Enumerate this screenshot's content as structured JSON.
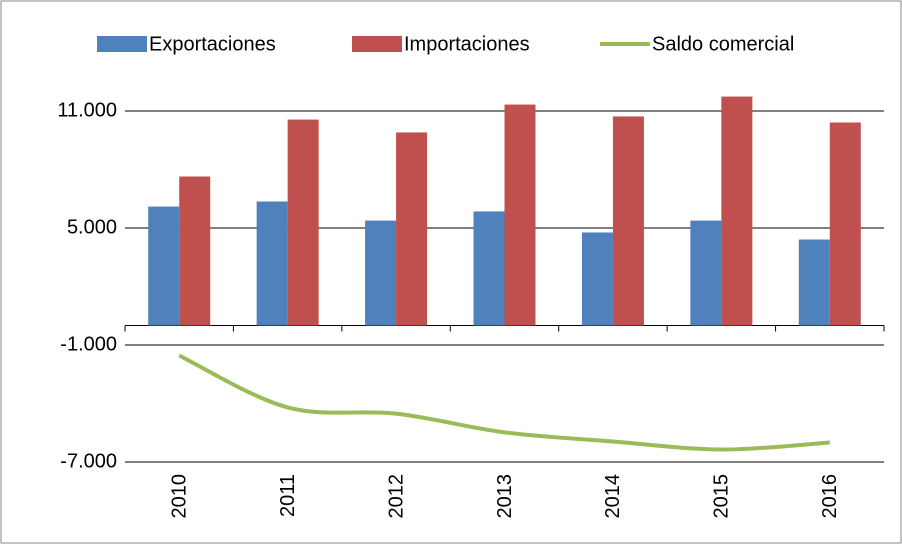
{
  "chart_data": {
    "type": "bar_line",
    "categories": [
      "2010",
      "2011",
      "2012",
      "2013",
      "2014",
      "2015",
      "2016"
    ],
    "series": [
      {
        "name": "Exportaciones",
        "color": "#4f81bd",
        "type": "bar",
        "values": [
          6100,
          6360,
          5380,
          5850,
          4770,
          5380,
          4410
        ]
      },
      {
        "name": "Importaciones",
        "color": "#c0504d",
        "type": "bar",
        "values": [
          7640,
          10560,
          9900,
          11330,
          10720,
          11740,
          10410
        ]
      },
      {
        "name": "Saldo comercial",
        "color": "#9bbb59",
        "type": "line",
        "values": [
          -1540,
          -4200,
          -4520,
          -5480,
          -5950,
          -6360,
          -6000
        ]
      }
    ],
    "ylim": [
      -7000,
      14000
    ],
    "yticks": [
      {
        "value": -7000,
        "label": "-7.000"
      },
      {
        "value": -1000,
        "label": "-1.000"
      },
      {
        "value": 5000,
        "label": "5.000"
      },
      {
        "value": 11000,
        "label": "11.000"
      }
    ],
    "grid": true,
    "legend": "top"
  }
}
